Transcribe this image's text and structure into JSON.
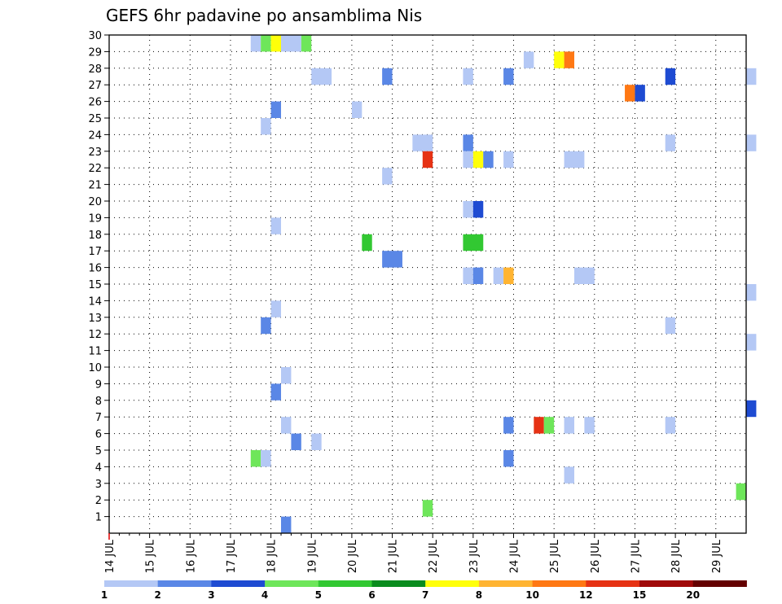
{
  "chart_data": {
    "type": "heatmap",
    "title": "GEFS 6hr padavine po ansamblima Nis",
    "xlabel": "",
    "ylabel": "",
    "grid": true,
    "x_range": [
      0,
      15.75
    ],
    "y_range": [
      0,
      30
    ],
    "x_tick_labels": [
      "14 JUL",
      "15 JUL",
      "16 JUL",
      "17 JUL",
      "18 JUL",
      "19 JUL",
      "20 JUL",
      "21 JUL",
      "22 JUL",
      "23 JUL",
      "24 JUL",
      "25 JUL",
      "26 JUL",
      "27 JUL",
      "28 JUL",
      "29 JUL"
    ],
    "y_tick_labels": [
      "1",
      "2",
      "3",
      "4",
      "5",
      "6",
      "7",
      "8",
      "9",
      "10",
      "11",
      "12",
      "13",
      "14",
      "15",
      "16",
      "17",
      "18",
      "19",
      "20",
      "21",
      "22",
      "23",
      "24",
      "25",
      "26",
      "27",
      "28",
      "29",
      "30"
    ],
    "legend": {
      "placement": "bottom",
      "colors": [
        "#b4c8f5",
        "#5a87e6",
        "#1e4bd2",
        "#6ee65a",
        "#32c832",
        "#0a8c1e",
        "#ffff0a",
        "#ffb432",
        "#ff7814",
        "#e63214",
        "#a00a0a",
        "#640000"
      ],
      "labels": [
        "1",
        "2",
        "3",
        "4",
        "5",
        "6",
        "7",
        "8",
        "10",
        "12",
        "15",
        "20"
      ]
    },
    "cells": [
      {
        "x": 3.5,
        "y": 30,
        "w": 0.25,
        "c": 0
      },
      {
        "x": 3.75,
        "y": 30,
        "w": 0.25,
        "c": 3
      },
      {
        "x": 4.0,
        "y": 30,
        "w": 0.25,
        "c": 6
      },
      {
        "x": 4.25,
        "y": 30,
        "w": 0.5,
        "c": 0
      },
      {
        "x": 4.75,
        "y": 30,
        "w": 0.25,
        "c": 3
      },
      {
        "x": 10.25,
        "y": 29,
        "w": 0.25,
        "c": 0
      },
      {
        "x": 11.0,
        "y": 29,
        "w": 0.25,
        "c": 6
      },
      {
        "x": 11.25,
        "y": 29,
        "w": 0.25,
        "c": 8
      },
      {
        "x": 5.0,
        "y": 28,
        "w": 0.5,
        "c": 0
      },
      {
        "x": 6.75,
        "y": 28,
        "w": 0.25,
        "c": 1
      },
      {
        "x": 8.75,
        "y": 28,
        "w": 0.25,
        "c": 0
      },
      {
        "x": 9.75,
        "y": 28,
        "w": 0.25,
        "c": 1
      },
      {
        "x": 13.75,
        "y": 28,
        "w": 0.25,
        "c": 2
      },
      {
        "x": 15.75,
        "y": 28,
        "w": 0.25,
        "c": 0
      },
      {
        "x": 12.75,
        "y": 27,
        "w": 0.25,
        "c": 8
      },
      {
        "x": 13.0,
        "y": 27,
        "w": 0.25,
        "c": 2
      },
      {
        "x": 4.0,
        "y": 26,
        "w": 0.25,
        "c": 1
      },
      {
        "x": 6.0,
        "y": 26,
        "w": 0.25,
        "c": 0
      },
      {
        "x": 3.75,
        "y": 25,
        "w": 0.25,
        "c": 0
      },
      {
        "x": 7.5,
        "y": 24,
        "w": 0.5,
        "c": 0
      },
      {
        "x": 8.75,
        "y": 24,
        "w": 0.25,
        "c": 1
      },
      {
        "x": 13.75,
        "y": 24,
        "w": 0.25,
        "c": 0
      },
      {
        "x": 15.75,
        "y": 24,
        "w": 0.25,
        "c": 0
      },
      {
        "x": 7.75,
        "y": 23,
        "w": 0.25,
        "c": 9
      },
      {
        "x": 8.75,
        "y": 23,
        "w": 0.25,
        "c": 0
      },
      {
        "x": 9.0,
        "y": 23,
        "w": 0.25,
        "c": 6
      },
      {
        "x": 9.25,
        "y": 23,
        "w": 0.25,
        "c": 1
      },
      {
        "x": 9.75,
        "y": 23,
        "w": 0.25,
        "c": 0
      },
      {
        "x": 11.25,
        "y": 23,
        "w": 0.5,
        "c": 0
      },
      {
        "x": 6.75,
        "y": 22,
        "w": 0.25,
        "c": 0
      },
      {
        "x": 8.75,
        "y": 20,
        "w": 0.25,
        "c": 0
      },
      {
        "x": 9.0,
        "y": 20,
        "w": 0.25,
        "c": 2
      },
      {
        "x": 4.0,
        "y": 19,
        "w": 0.25,
        "c": 0
      },
      {
        "x": 6.25,
        "y": 18,
        "w": 0.25,
        "c": 4
      },
      {
        "x": 8.75,
        "y": 18,
        "w": 0.5,
        "c": 4
      },
      {
        "x": 6.75,
        "y": 17,
        "w": 0.5,
        "c": 1
      },
      {
        "x": 8.75,
        "y": 16,
        "w": 0.25,
        "c": 0
      },
      {
        "x": 9.0,
        "y": 16,
        "w": 0.25,
        "c": 1
      },
      {
        "x": 9.5,
        "y": 16,
        "w": 0.25,
        "c": 0
      },
      {
        "x": 9.75,
        "y": 16,
        "w": 0.25,
        "c": 7
      },
      {
        "x": 11.5,
        "y": 16,
        "w": 0.5,
        "c": 0
      },
      {
        "x": 15.75,
        "y": 15,
        "w": 0.25,
        "c": 0
      },
      {
        "x": 4.0,
        "y": 14,
        "w": 0.25,
        "c": 0
      },
      {
        "x": 3.75,
        "y": 13,
        "w": 0.25,
        "c": 1
      },
      {
        "x": 13.75,
        "y": 13,
        "w": 0.25,
        "c": 0
      },
      {
        "x": 15.75,
        "y": 12,
        "w": 0.25,
        "c": 0
      },
      {
        "x": 4.25,
        "y": 10,
        "w": 0.25,
        "c": 0
      },
      {
        "x": 4.0,
        "y": 9,
        "w": 0.25,
        "c": 1
      },
      {
        "x": 15.75,
        "y": 8,
        "w": 0.25,
        "c": 2
      },
      {
        "x": 4.25,
        "y": 7,
        "w": 0.25,
        "c": 0
      },
      {
        "x": 9.75,
        "y": 7,
        "w": 0.25,
        "c": 1
      },
      {
        "x": 10.5,
        "y": 7,
        "w": 0.25,
        "c": 9
      },
      {
        "x": 10.75,
        "y": 7,
        "w": 0.25,
        "c": 3
      },
      {
        "x": 11.25,
        "y": 7,
        "w": 0.25,
        "c": 0
      },
      {
        "x": 11.75,
        "y": 7,
        "w": 0.25,
        "c": 0
      },
      {
        "x": 13.75,
        "y": 7,
        "w": 0.25,
        "c": 0
      },
      {
        "x": 4.5,
        "y": 6,
        "w": 0.25,
        "c": 1
      },
      {
        "x": 5.0,
        "y": 6,
        "w": 0.25,
        "c": 0
      },
      {
        "x": 3.5,
        "y": 5,
        "w": 0.25,
        "c": 3
      },
      {
        "x": 3.75,
        "y": 5,
        "w": 0.25,
        "c": 0
      },
      {
        "x": 9.75,
        "y": 5,
        "w": 0.25,
        "c": 1
      },
      {
        "x": 11.25,
        "y": 4,
        "w": 0.25,
        "c": 0
      },
      {
        "x": 15.5,
        "y": 3,
        "w": 0.25,
        "c": 3
      },
      {
        "x": 7.75,
        "y": 2,
        "w": 0.25,
        "c": 3
      },
      {
        "x": 4.25,
        "y": 1,
        "w": 0.25,
        "c": 1
      }
    ]
  }
}
